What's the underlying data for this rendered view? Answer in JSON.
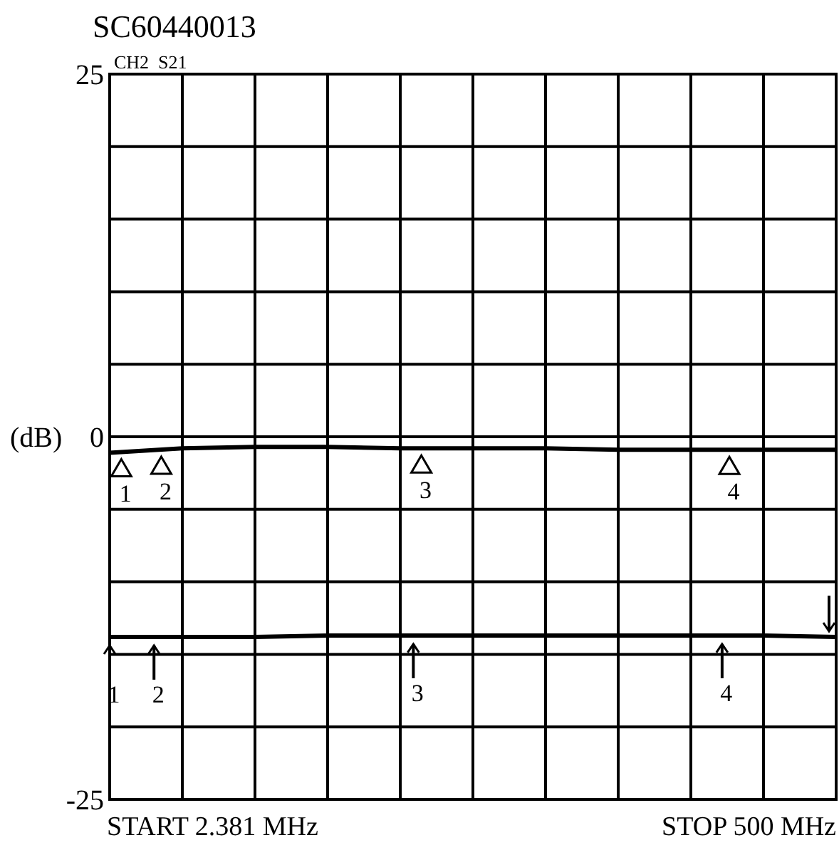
{
  "chart_data": {
    "type": "line",
    "title": "SC60440013",
    "ylabel": "(dB)",
    "annotations": [
      "CH2  S21",
      "START 2.381 MHz",
      "STOP 500 MHz",
      "1",
      "2",
      "3",
      "4",
      "1",
      "2",
      "3",
      "4"
    ],
    "categories": [
      null,
      null,
      null,
      null,
      null,
      null,
      null,
      null,
      null,
      null,
      null
    ],
    "ylim": [
      -25,
      25
    ],
    "yticks": [
      -25,
      {
        "value": -20,
        "label": null
      },
      {
        "value": -15,
        "label": null
      },
      {
        "value": -10,
        "label": null
      },
      {
        "value": -5,
        "label": null
      },
      0,
      {
        "value": 5,
        "label": null
      },
      {
        "value": 10,
        "label": null
      },
      {
        "value": 15,
        "label": null
      },
      {
        "value": 20,
        "label": null
      },
      25
    ],
    "grid": true,
    "marker": "none",
    "line_style": "solid",
    "tick_labels": "y",
    "series": [
      {
        "color": "#000000",
        "values": [
          -1.1,
          -0.8,
          -0.7,
          -0.7,
          -0.8,
          -0.8,
          -0.8,
          -0.9,
          -0.9,
          -0.9,
          -0.9
        ]
      },
      {
        "color": "#000000",
        "values": [
          -13.8,
          -13.8,
          -13.8,
          -13.7,
          -13.7,
          -13.7,
          -13.7,
          -13.7,
          -13.7,
          -13.7,
          -13.8
        ]
      }
    ]
  }
}
